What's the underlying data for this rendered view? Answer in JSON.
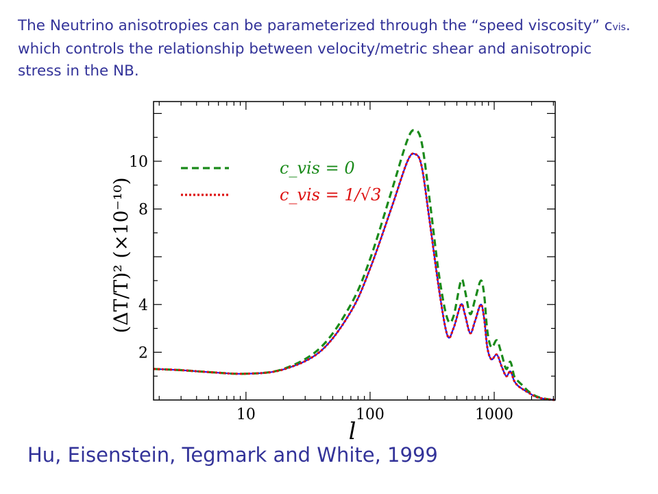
{
  "intro": {
    "part1": "The Neutrino anisotropies can be parameterized through the “speed viscosity” c",
    "subscript": "vis",
    "part2": ". which controls the relationship between velocity/metric shear and anisotropic stress in the NB."
  },
  "credit": "Hu, Eisenstein, Tegmark and White, 1999",
  "chart_data": {
    "type": "line",
    "xscale": "log",
    "xlim": [
      1.8,
      3100
    ],
    "ylim": [
      0,
      12.5
    ],
    "xticks": [
      "10",
      "100",
      "1000"
    ],
    "yticks": [
      "2",
      "4",
      "8",
      "10"
    ],
    "xlabel": "l",
    "ylabel": "(ΔT/T)² (×10⁻¹⁰)",
    "legend": [
      {
        "label": "c_vis = 0",
        "color": "#1a8a1a",
        "dash": "dashed"
      },
      {
        "label": "c_vis = 1/√3",
        "color": "#dd1111",
        "dash": "dotted"
      }
    ],
    "series": [
      {
        "name": "c_vis = 0",
        "color": "#1a8a1a",
        "dash": "dashed",
        "x": [
          1.8,
          3,
          5,
          10,
          20,
          40,
          70,
          100,
          150,
          200,
          230,
          260,
          300,
          360,
          420,
          470,
          540,
          580,
          640,
          700,
          780,
          830,
          880,
          950,
          1050,
          1150,
          1250,
          1350,
          1450,
          1550,
          1700,
          1900,
          2200,
          2600,
          3100
        ],
        "y": [
          1.3,
          1.25,
          1.17,
          1.1,
          1.3,
          2.2,
          4.0,
          5.9,
          8.8,
          10.9,
          11.3,
          10.8,
          8.5,
          5.2,
          3.4,
          3.5,
          5.0,
          4.6,
          3.6,
          4.2,
          5.0,
          4.4,
          2.9,
          2.2,
          2.5,
          1.9,
          1.3,
          1.6,
          1.0,
          0.8,
          0.6,
          0.35,
          0.15,
          0.05,
          0.0
        ]
      },
      {
        "name": "c_vis = 1/√3",
        "color": "#dd1111",
        "dash": "dotted",
        "x": [
          1.8,
          3,
          5,
          10,
          20,
          40,
          70,
          100,
          150,
          200,
          230,
          260,
          300,
          360,
          420,
          470,
          540,
          580,
          640,
          700,
          780,
          830,
          880,
          950,
          1050,
          1150,
          1250,
          1350,
          1450,
          1550,
          1700,
          1900,
          2200,
          2600,
          3100
        ],
        "y": [
          1.3,
          1.25,
          1.17,
          1.1,
          1.28,
          2.05,
          3.7,
          5.5,
          8.1,
          10.0,
          10.3,
          9.8,
          7.6,
          4.6,
          2.7,
          3.0,
          4.0,
          3.6,
          2.8,
          3.3,
          4.0,
          3.4,
          2.2,
          1.7,
          1.9,
          1.4,
          1.0,
          1.2,
          0.8,
          0.6,
          0.45,
          0.3,
          0.12,
          0.04,
          0.0
        ]
      }
    ]
  },
  "colors": {
    "text_accent": "#333399",
    "blue_underlay": "#1a1aff"
  }
}
